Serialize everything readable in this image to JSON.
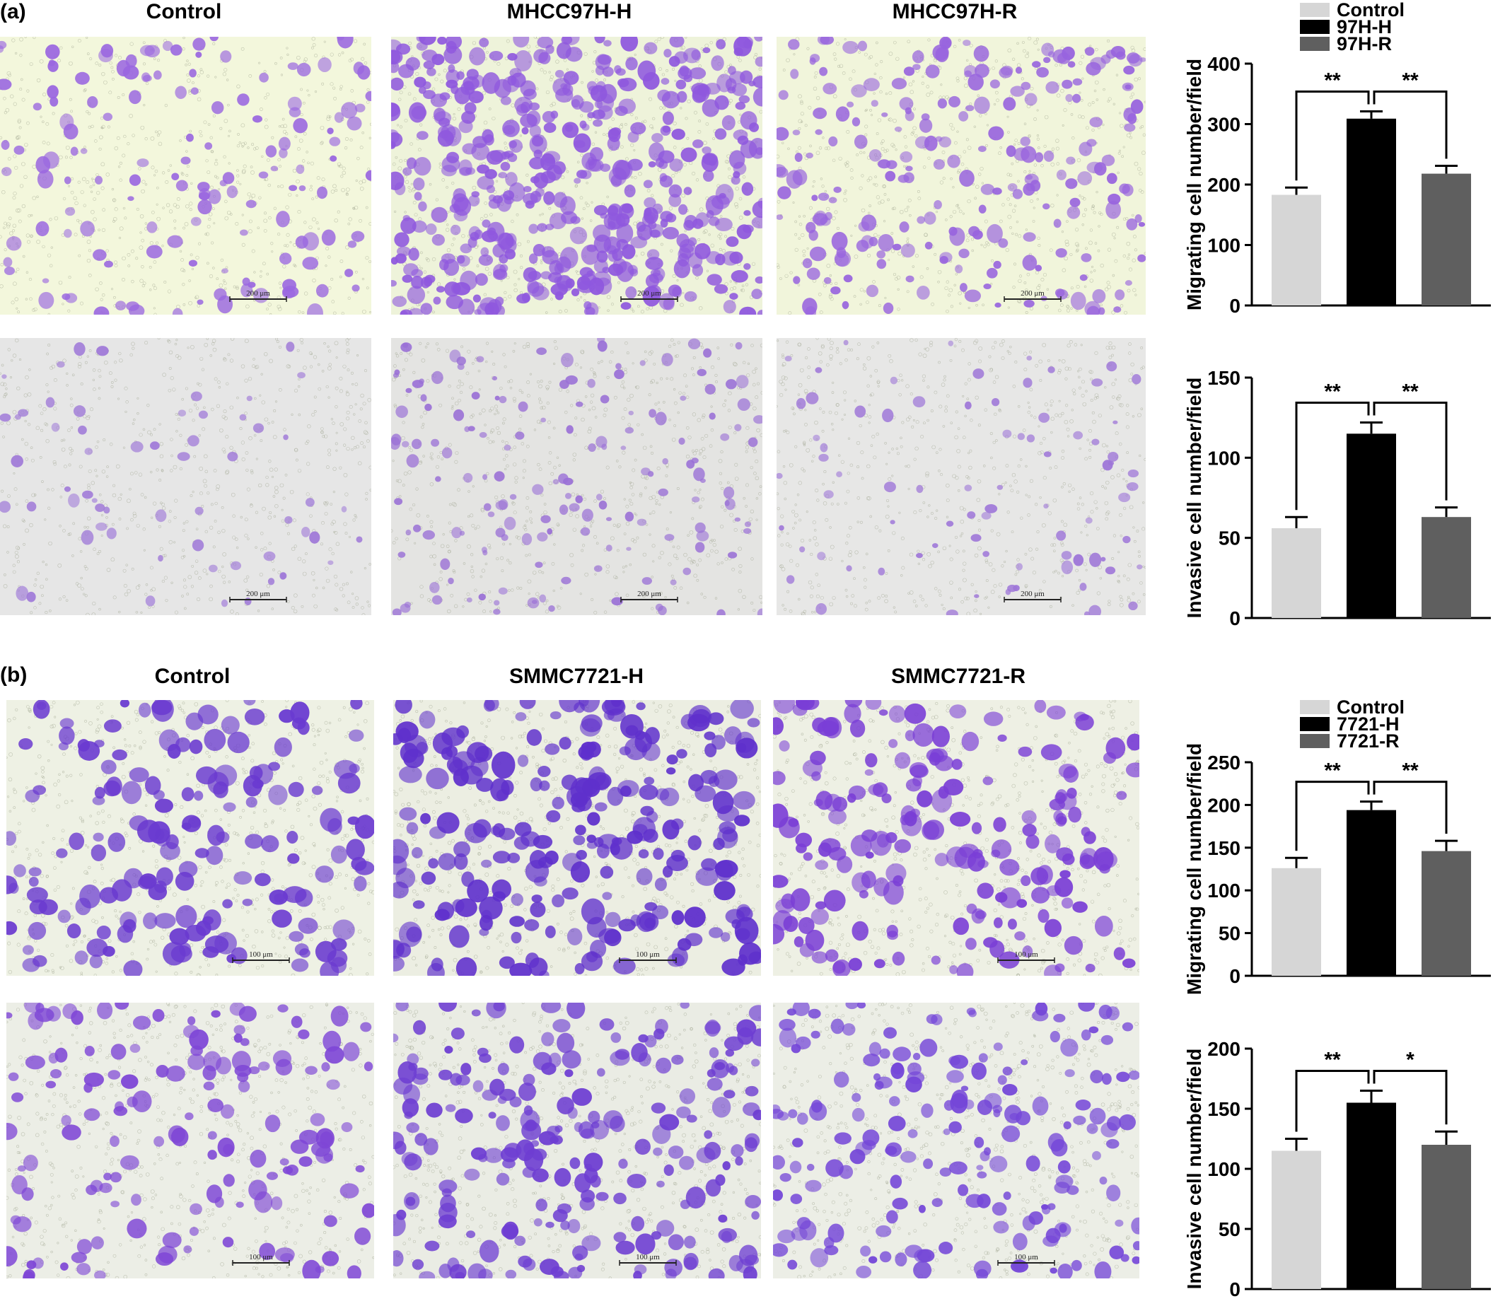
{
  "panel_a": {
    "label": "(a)",
    "columns": [
      "Control",
      "MHCC97H-H",
      "MHCC97H-R"
    ],
    "scale_bar": "200 μm"
  },
  "panel_b": {
    "label": "(b)",
    "columns": [
      "Control",
      "SMMC7721-H",
      "SMMC7721-R"
    ],
    "scale_bar": "100 μm"
  },
  "colors": {
    "control": "#d6d6d6",
    "high": "#000000",
    "reverse": "#5f5f5f"
  },
  "chart_data": [
    {
      "type": "bar",
      "categories": [
        "Control",
        "97H-H",
        "97H-R"
      ],
      "values": [
        183,
        309,
        218
      ],
      "errors": [
        12,
        12,
        13
      ],
      "ylabel": "Migrating cell number/field",
      "ylim": [
        0,
        400
      ],
      "yticks": [
        0,
        100,
        200,
        300,
        400
      ],
      "legend": [
        "Control",
        "97H-H",
        "97H-R"
      ],
      "significance": [
        "**",
        "**"
      ]
    },
    {
      "type": "bar",
      "categories": [
        "Control",
        "97H-H",
        "97H-R"
      ],
      "values": [
        56,
        115,
        63
      ],
      "errors": [
        7,
        7,
        6
      ],
      "ylabel": "Invasive cell number/field",
      "ylim": [
        0,
        150
      ],
      "yticks": [
        0,
        50,
        100,
        150
      ],
      "legend": [],
      "significance": [
        "**",
        "**"
      ]
    },
    {
      "type": "bar",
      "categories": [
        "Control",
        "7721-H",
        "7721-R"
      ],
      "values": [
        126,
        194,
        146
      ],
      "errors": [
        12,
        10,
        12
      ],
      "ylabel": "Migrating cell number/field",
      "ylim": [
        0,
        250
      ],
      "yticks": [
        0,
        50,
        100,
        150,
        200,
        250
      ],
      "legend": [
        "Control",
        "7721-H",
        "7721-R"
      ],
      "significance": [
        "**",
        "**"
      ]
    },
    {
      "type": "bar",
      "categories": [
        "Control",
        "7721-H",
        "7721-R"
      ],
      "values": [
        115,
        155,
        120
      ],
      "errors": [
        10,
        10,
        11
      ],
      "ylabel": "Invasive cell number/field",
      "ylim": [
        0,
        200
      ],
      "yticks": [
        0,
        50,
        100,
        150,
        200
      ],
      "legend": [],
      "significance": [
        "**",
        "*"
      ]
    }
  ]
}
